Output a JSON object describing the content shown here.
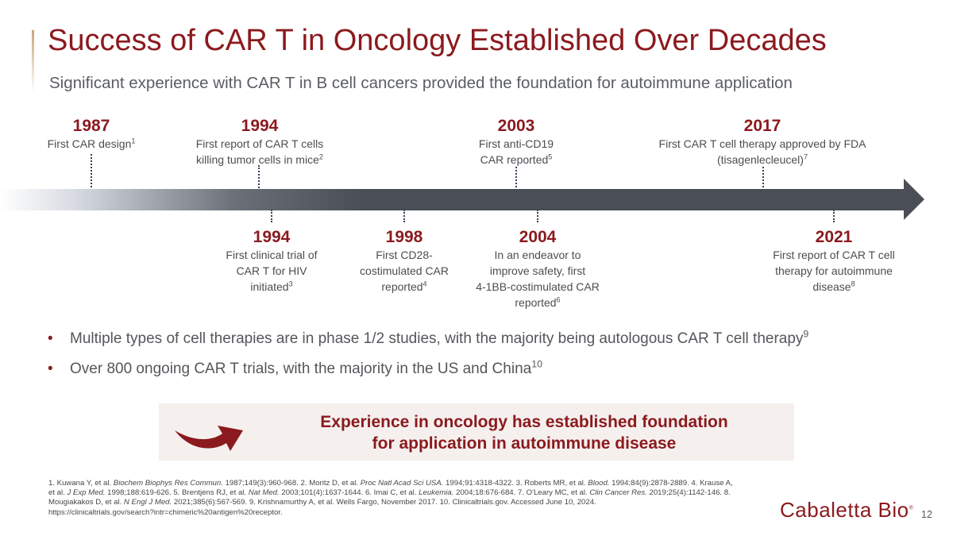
{
  "slide": {
    "title": "Success of CAR T in Oncology Established Over Decades",
    "subtitle": "Significant experience with CAR T in B cell cancers provided the foundation for autoimmune application",
    "page_number": "12"
  },
  "timeline": {
    "above": [
      {
        "year": "1987",
        "desc": "First CAR design",
        "ref": "1"
      },
      {
        "year": "1994",
        "desc_lines": [
          "First report of CAR T cells",
          "killing tumor cells in mice"
        ],
        "ref": "2"
      },
      {
        "year": "2003",
        "desc_lines": [
          "First anti-CD19",
          "CAR reported"
        ],
        "ref": "5"
      },
      {
        "year": "2017",
        "desc_lines": [
          "First CAR T cell therapy approved by FDA",
          "(tisagenlecleucel)"
        ],
        "ref": "7"
      }
    ],
    "below": [
      {
        "year": "1994",
        "desc_lines": [
          "First clinical trial of",
          "CAR T for HIV",
          "initiated"
        ],
        "ref": "3"
      },
      {
        "year": "1998",
        "desc_lines": [
          "First CD28-",
          "costimulated CAR",
          "reported"
        ],
        "ref": "4"
      },
      {
        "year": "2004",
        "desc_lines": [
          "In an endeavor to",
          "improve safety, first",
          "4-1BB-costimulated CAR",
          "reported"
        ],
        "ref": "6"
      },
      {
        "year": "2021",
        "desc_lines": [
          "First report of CAR T cell",
          "therapy for autoimmune",
          "disease"
        ],
        "ref": "8"
      }
    ]
  },
  "bullets": [
    {
      "text": "Multiple types of cell therapies are in phase 1/2 studies, with the majority being autologous CAR T cell therapy",
      "ref": "9"
    },
    {
      "text": "Over 800 ongoing CAR T trials, with the majority in the US and China",
      "ref": "10"
    }
  ],
  "bullet_marker": "•",
  "callout": {
    "line1": "Experience in oncology has established foundation",
    "line2": "for application in autoimmune disease",
    "icon": "curved-arrow-icon"
  },
  "references": {
    "r1_num": "1. Kuwana Y, et al. ",
    "r1_journal": "Biochem Biophys Res Commun.",
    "r1_rest": " 1987;149(3):960-968. ",
    "r2_num": "2. Moritz D, et al. ",
    "r2_journal": "Proc Natl Acad Sci USA.",
    "r2_rest": " 1994;91:4318-4322. ",
    "r3_num": "3. Roberts MR, et al. ",
    "r3_journal": "Blood.",
    "r3_rest": " 1994;84(9):2878-2889. ",
    "r4_num": "4. Krause A, et al. ",
    "r4_journal": "J Exp Med.",
    "r4_rest": " 1998;188:619-626. ",
    "r5_num": "5. Brentjens RJ, et al. ",
    "r5_journal": "Nat Med.",
    "r5_rest": " 2003;101(4):1637-1644. ",
    "r6_num": "6. Imai C, et al. ",
    "r6_journal": "Leukemia.",
    "r6_rest": " 2004;18:676-684. ",
    "r7_num": "7. O'Leary MC, et al. ",
    "r7_journal": "Clin Cancer Res.",
    "r7_rest": " 2019;25(4):1142-146. ",
    "r8_num": "8. Mougiakakos D, et al. ",
    "r8_journal": "N Engl J Med.",
    "r8_rest": " 2021;385(6):567-569. ",
    "r9": "9. Krishnamurthy A, et al. Wells Fargo, November 2017. ",
    "r10": "10. Clinicaltrials.gov. Accessed June 10, 2024.",
    "url": "https://clinicaltrials.gov/search?intr=chimeric%20antigen%20receptor."
  },
  "logo": {
    "text": "Cabaletta Bio",
    "mark": "®"
  },
  "colors": {
    "brand": "#8b1a1e",
    "arrow": "#4a4e56",
    "text": "#54565b",
    "callout_bg": "#f5f0ee"
  }
}
